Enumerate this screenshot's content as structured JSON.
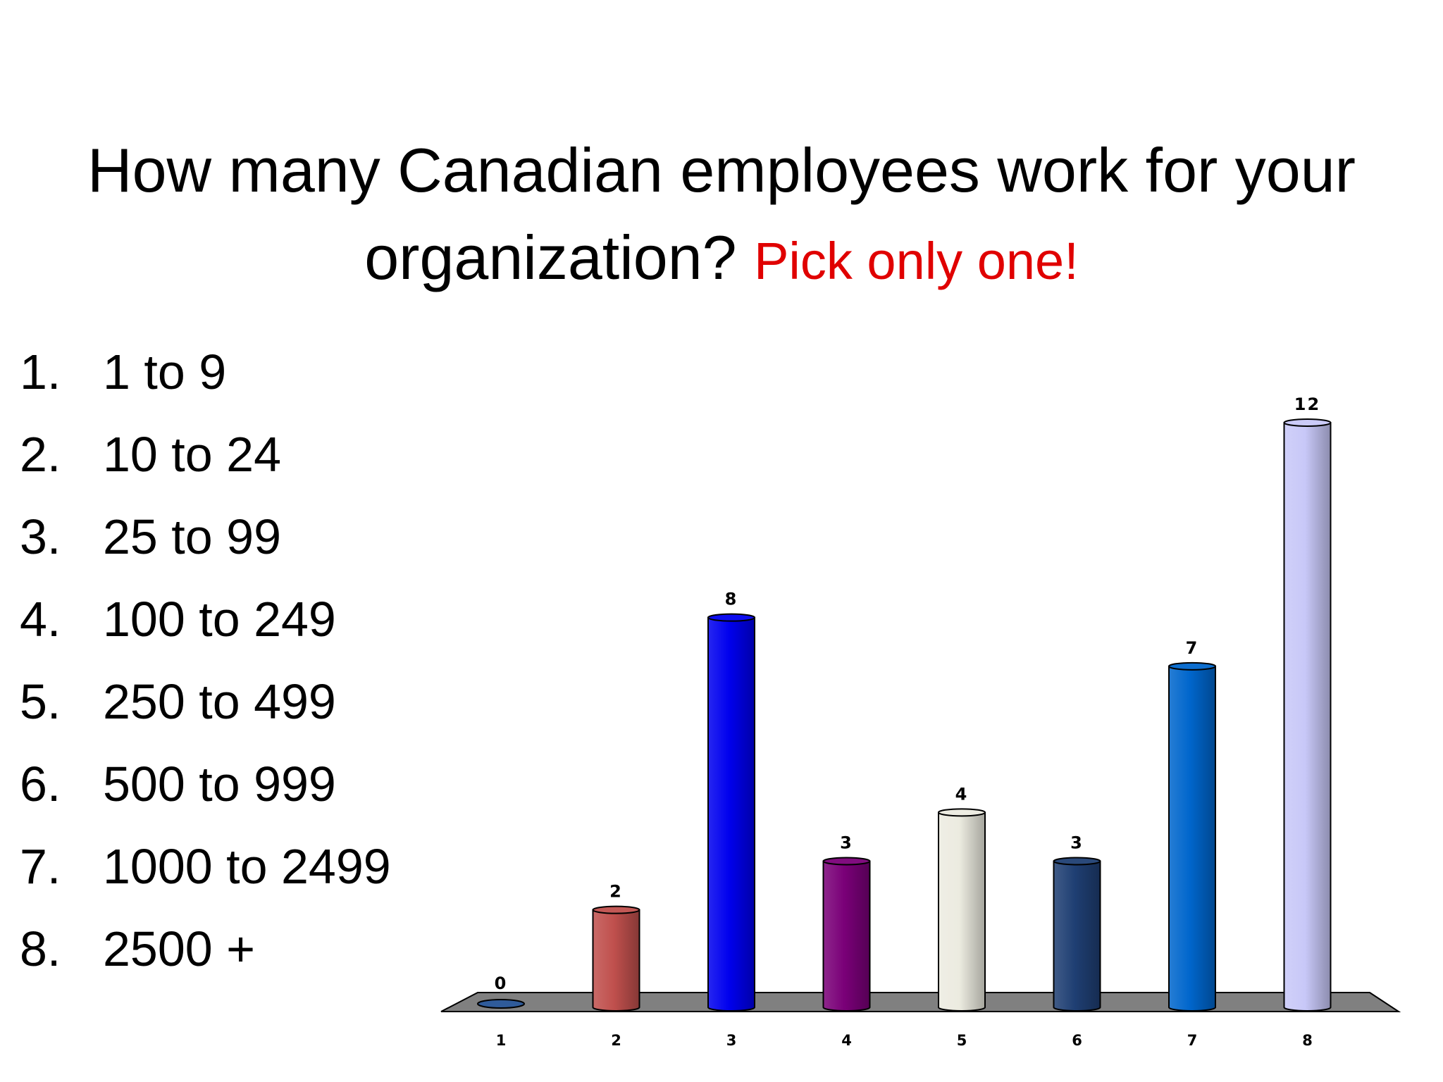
{
  "slide": {
    "title": "How many Canadian employees work for your organization?",
    "title_line1": "How many Canadian employees work for your",
    "title_line2": "organization?",
    "instruction": "Pick only one!",
    "accent_color": "#e00000"
  },
  "options": [
    {
      "number": "1.",
      "label": "1 to 9"
    },
    {
      "number": "2.",
      "label": "10 to 24"
    },
    {
      "number": "3.",
      "label": "25 to 99"
    },
    {
      "number": "4.",
      "label": "100 to 249"
    },
    {
      "number": "5.",
      "label": "250 to 499"
    },
    {
      "number": "6.",
      "label": "500 to 999"
    },
    {
      "number": "7.",
      "label": "1000 to 2499"
    },
    {
      "number": "8.",
      "label": "2500 +"
    }
  ],
  "chart_data": {
    "type": "bar",
    "style": "3d-cylinder",
    "categories": [
      "1",
      "2",
      "3",
      "4",
      "5",
      "6",
      "7",
      "8"
    ],
    "values": [
      0,
      2,
      8,
      3,
      4,
      3,
      7,
      12
    ],
    "colors": [
      "#2f5b9a",
      "#c0504d",
      "#0000ee",
      "#7a0078",
      "#ecebe0",
      "#1f3f73",
      "#0066cc",
      "#c8c8f8"
    ],
    "data_labels": true,
    "title": "",
    "xlabel": "",
    "ylabel": "",
    "ylim": [
      0,
      12
    ],
    "grid": false,
    "legend": "none",
    "floor_color": "#808080"
  }
}
